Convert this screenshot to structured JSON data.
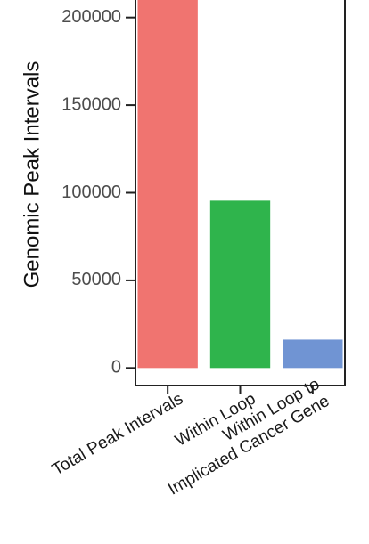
{
  "chart_data": {
    "type": "bar",
    "y_label": "Genomic Peak Intervals",
    "categories": [
      "Total Peak Intervals",
      "Within Loop",
      "Within Loop to\nImplicated Cancer Gene"
    ],
    "values": [
      230000,
      95500,
      16200
    ],
    "colors": [
      "#f07470",
      "#2fb44c",
      "#7094d3"
    ],
    "ylim": [
      -10000,
      210000
    ],
    "yticks": [
      0,
      50000,
      100000,
      150000,
      200000
    ],
    "grid": false
  }
}
